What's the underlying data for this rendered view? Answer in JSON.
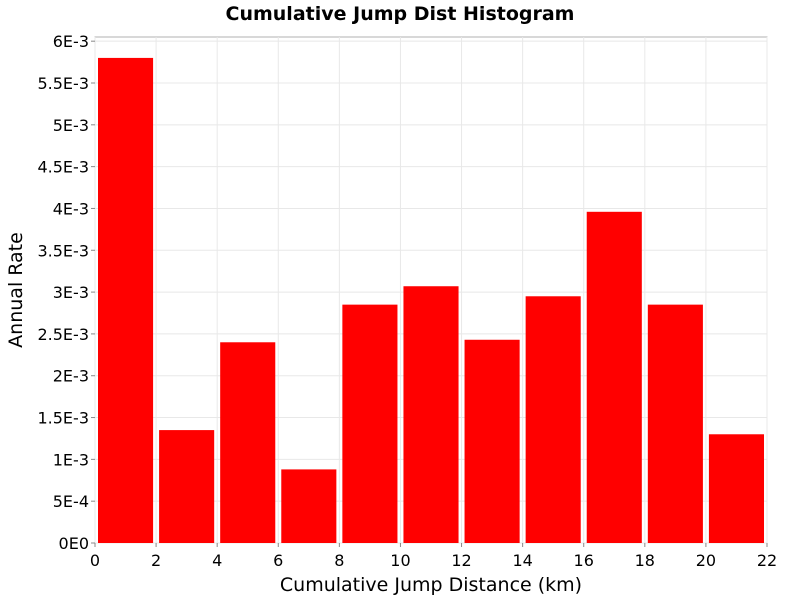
{
  "chart_data": {
    "type": "bar",
    "title": "Cumulative Jump Dist Histogram",
    "xlabel": "Cumulative Jump Distance (km)",
    "ylabel": "Annual Rate",
    "xlim": [
      0,
      22
    ],
    "ylim": [
      0,
      0.00605
    ],
    "x_ticks": [
      0,
      2,
      4,
      6,
      8,
      10,
      12,
      14,
      16,
      18,
      20,
      22
    ],
    "x_tick_labels": [
      "0",
      "2",
      "4",
      "6",
      "8",
      "10",
      "12",
      "14",
      "16",
      "18",
      "20",
      "22"
    ],
    "y_ticks": [
      0,
      0.0005,
      0.001,
      0.0015,
      0.002,
      0.0025,
      0.003,
      0.0035,
      0.004,
      0.0045,
      0.005,
      0.0055,
      0.006
    ],
    "y_tick_labels": [
      "0E0",
      "5E-4",
      "1E-3",
      "1.5E-3",
      "2E-3",
      "2.5E-3",
      "3E-3",
      "3.5E-3",
      "4E-3",
      "4.5E-3",
      "5E-3",
      "5.5E-3",
      "6E-3"
    ],
    "bin_width": 2,
    "bin_centers": [
      1,
      3,
      5,
      7,
      9,
      11,
      13,
      15,
      17,
      19,
      21
    ],
    "values": [
      0.0058,
      0.00135,
      0.0024,
      0.00088,
      0.00285,
      0.00307,
      0.00243,
      0.00295,
      0.00396,
      0.00285,
      0.0013
    ],
    "bar_color": "#ff0000",
    "grid": true,
    "legend": "none"
  }
}
